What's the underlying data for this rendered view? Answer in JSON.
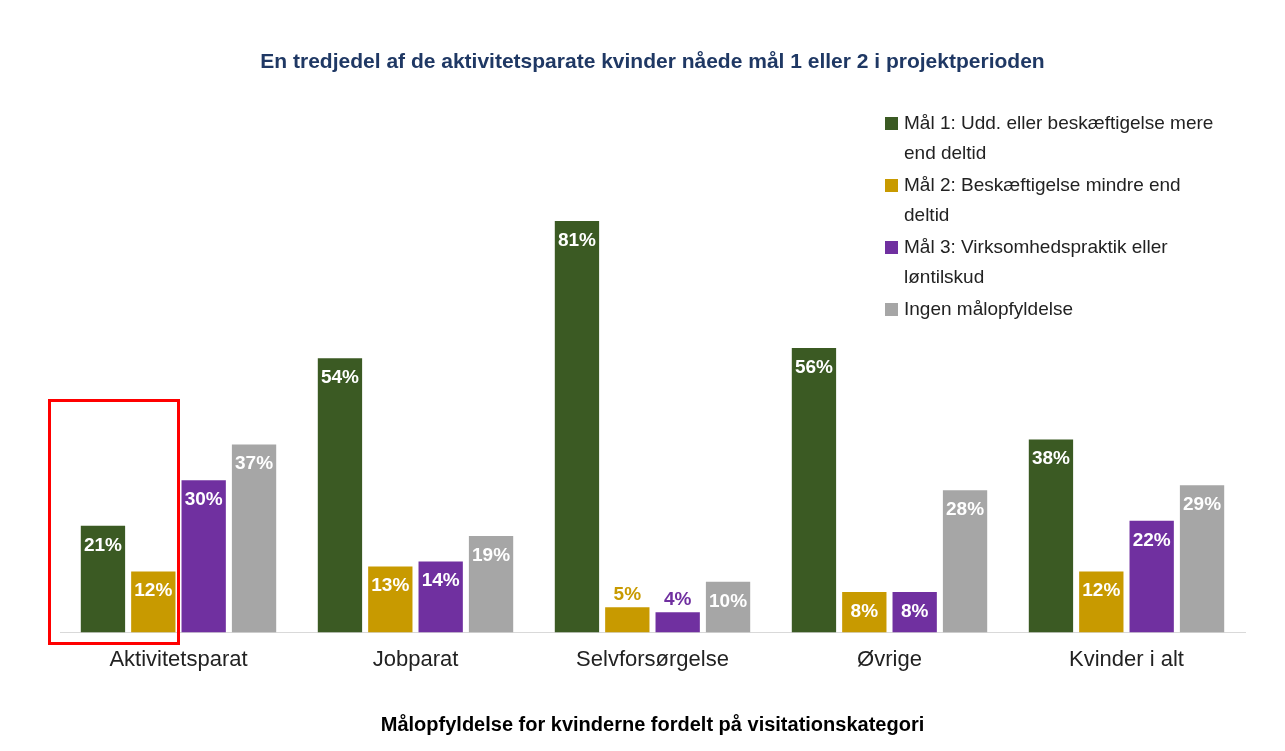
{
  "chart_data": {
    "type": "bar",
    "title": "En tredjedel af de aktivitetsparate kvinder nåede mål 1 eller 2 i projektperioden",
    "xlabel": "Målopfyldelse for kvinderne fordelt på visitationskategori",
    "categories": [
      "Aktivitetsparat",
      "Jobparat",
      "Selvforsørgelse",
      "Øvrige",
      "Kvinder i alt"
    ],
    "series": [
      {
        "name": "Mål 1: Udd. eller beskæftigelse mere end deltid",
        "color": "#3b5a23",
        "values": [
          21,
          54,
          81,
          56,
          38
        ],
        "value_labels": [
          "21%",
          "54%",
          "81%",
          "56%",
          "38%"
        ]
      },
      {
        "name": "Mål 2: Beskæftigelse mindre end deltid",
        "color": "#c89a00",
        "values": [
          12,
          13,
          5,
          8,
          12
        ],
        "value_labels": [
          "12%",
          "13%",
          "5%",
          "8%",
          "12%"
        ]
      },
      {
        "name": "Mål 3: Virksomhedspraktik eller løntilskud",
        "color": "#7030a0",
        "values": [
          30,
          14,
          4,
          8,
          22
        ],
        "value_labels": [
          "30%",
          "14%",
          "4%",
          "8%",
          "22%"
        ]
      },
      {
        "name": "Ingen målopfyldelse",
        "color": "#a6a6a6",
        "values": [
          37,
          19,
          10,
          28,
          29
        ],
        "value_labels": [
          "37%",
          "19%",
          "10%",
          "28%",
          "29%"
        ]
      }
    ],
    "grid": false,
    "legend": "top right"
  }
}
